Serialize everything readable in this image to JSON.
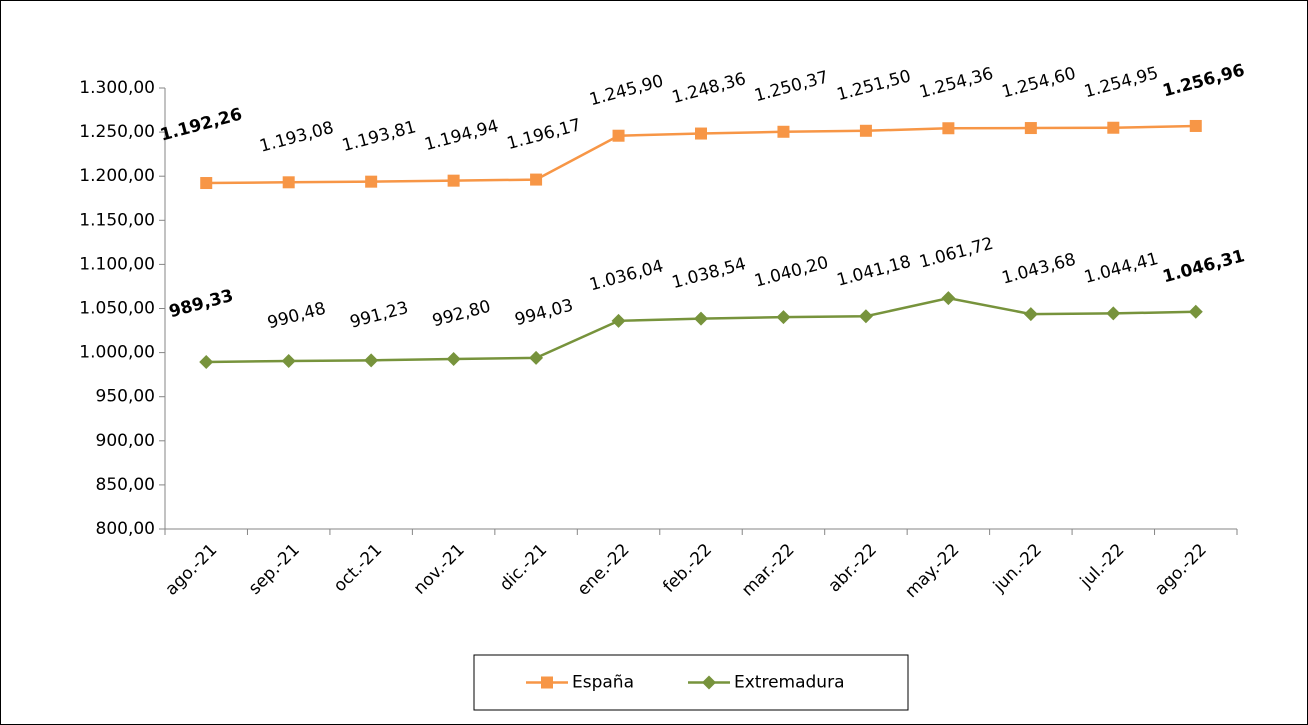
{
  "chart_data": {
    "type": "line",
    "categories": [
      "ago.-21",
      "sep.-21",
      "oct.-21",
      "nov.-21",
      "dic.-21",
      "ene.-22",
      "feb.-22",
      "mar.-22",
      "abr.-22",
      "may.-22",
      "jun.-22",
      "jul.-22",
      "ago.-22"
    ],
    "series": [
      {
        "name": "España",
        "color": "#f79646",
        "marker": "square",
        "values": [
          1192.26,
          1193.08,
          1193.81,
          1194.94,
          1196.17,
          1245.9,
          1248.36,
          1250.37,
          1251.5,
          1254.36,
          1254.6,
          1254.95,
          1256.96
        ],
        "value_labels": [
          "1.192,26",
          "1.193,08",
          "1.193,81",
          "1.194,94",
          "1.196,17",
          "1.245,90",
          "1.248,36",
          "1.250,37",
          "1.251,50",
          "1.254,36",
          "1.254,60",
          "1.254,95",
          "1.256,96"
        ]
      },
      {
        "name": "Extremadura",
        "color": "#77933c",
        "marker": "diamond",
        "values": [
          989.33,
          990.48,
          991.23,
          992.8,
          994.03,
          1036.04,
          1038.54,
          1040.2,
          1041.18,
          1061.72,
          1043.68,
          1044.41,
          1046.31
        ],
        "value_labels": [
          "989,33",
          "990,48",
          "991,23",
          "992,80",
          "994,03",
          "1.036,04",
          "1.038,54",
          "1.040,20",
          "1.041,18",
          "1.061,72",
          "1.043,68",
          "1.044,41",
          "1.046,31"
        ]
      }
    ],
    "ylim": [
      800,
      1300
    ],
    "yticks": [
      {
        "value": 800,
        "label": "800,00"
      },
      {
        "value": 850,
        "label": "850,00"
      },
      {
        "value": 900,
        "label": "900,00"
      },
      {
        "value": 950,
        "label": "950,00"
      },
      {
        "value": 1000,
        "label": "1.000,00"
      },
      {
        "value": 1050,
        "label": "1.050,00"
      },
      {
        "value": 1100,
        "label": "1.100,00"
      },
      {
        "value": 1150,
        "label": "1.150,00"
      },
      {
        "value": 1200,
        "label": "1.200,00"
      },
      {
        "value": 1250,
        "label": "1.250,00"
      },
      {
        "value": 1300,
        "label": "1.300,00"
      }
    ],
    "grid": false,
    "legend": "bottom"
  }
}
